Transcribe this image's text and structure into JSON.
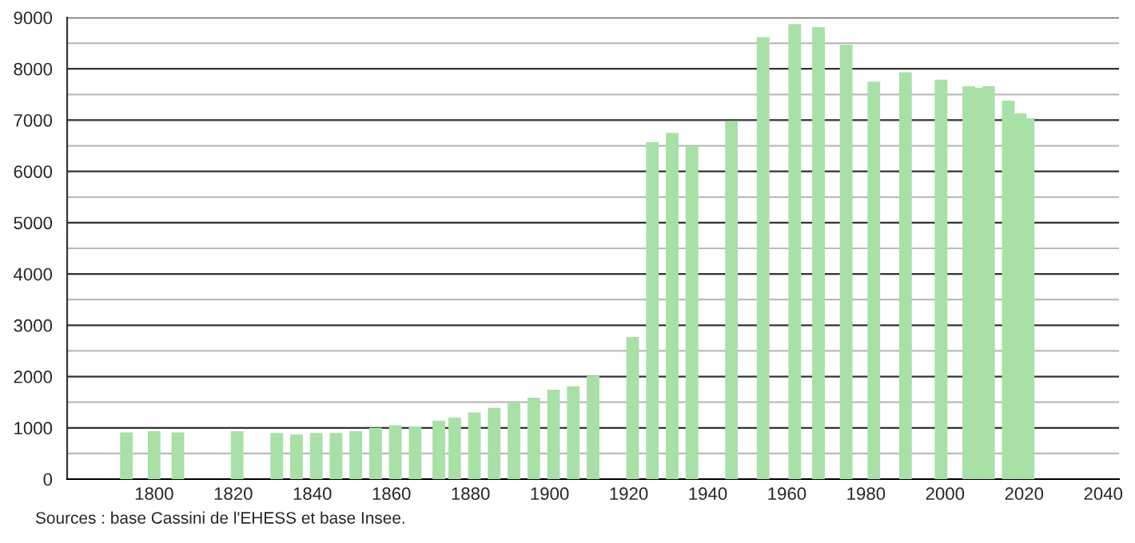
{
  "chart_data": {
    "type": "bar",
    "x": [
      1793,
      1800,
      1806,
      1821,
      1831,
      1836,
      1841,
      1846,
      1851,
      1856,
      1861,
      1866,
      1872,
      1876,
      1881,
      1886,
      1891,
      1896,
      1901,
      1906,
      1911,
      1921,
      1926,
      1931,
      1936,
      1946,
      1954,
      1962,
      1968,
      1975,
      1982,
      1990,
      1999,
      2006,
      2008,
      2011,
      2016,
      2019,
      2021
    ],
    "values": [
      910,
      935,
      910,
      935,
      900,
      870,
      900,
      900,
      935,
      1000,
      1050,
      1020,
      1140,
      1200,
      1300,
      1390,
      1485,
      1590,
      1745,
      1810,
      2015,
      2770,
      6570,
      6750,
      6490,
      6980,
      8620,
      8870,
      8815,
      8470,
      7750,
      7935,
      7790,
      7660,
      7630,
      7660,
      7380,
      7130,
      7040
    ],
    "color": "#a8e0a8",
    "xlim": [
      1778,
      2044
    ],
    "xticks": [
      1800,
      1820,
      1840,
      1860,
      1880,
      1900,
      1920,
      1940,
      1960,
      1980,
      2000,
      2020,
      2040
    ],
    "ylim": [
      0,
      9000
    ],
    "yticks": [
      0,
      {
        "value": 500,
        "label": null
      },
      1000,
      {
        "value": 1500,
        "label": null
      },
      2000,
      {
        "value": 2500,
        "label": null
      },
      3000,
      {
        "value": 3500,
        "label": null
      },
      4000,
      {
        "value": 4500,
        "label": null
      },
      5000,
      {
        "value": 5500,
        "label": null
      },
      6000,
      {
        "value": 6500,
        "label": null
      },
      7000,
      {
        "value": 7500,
        "label": null
      },
      8000,
      {
        "value": 8500,
        "label": null
      },
      9000
    ],
    "grid": "y",
    "annotations": [
      "Sources : base Cassini de l'EHESS et base Insee."
    ]
  }
}
